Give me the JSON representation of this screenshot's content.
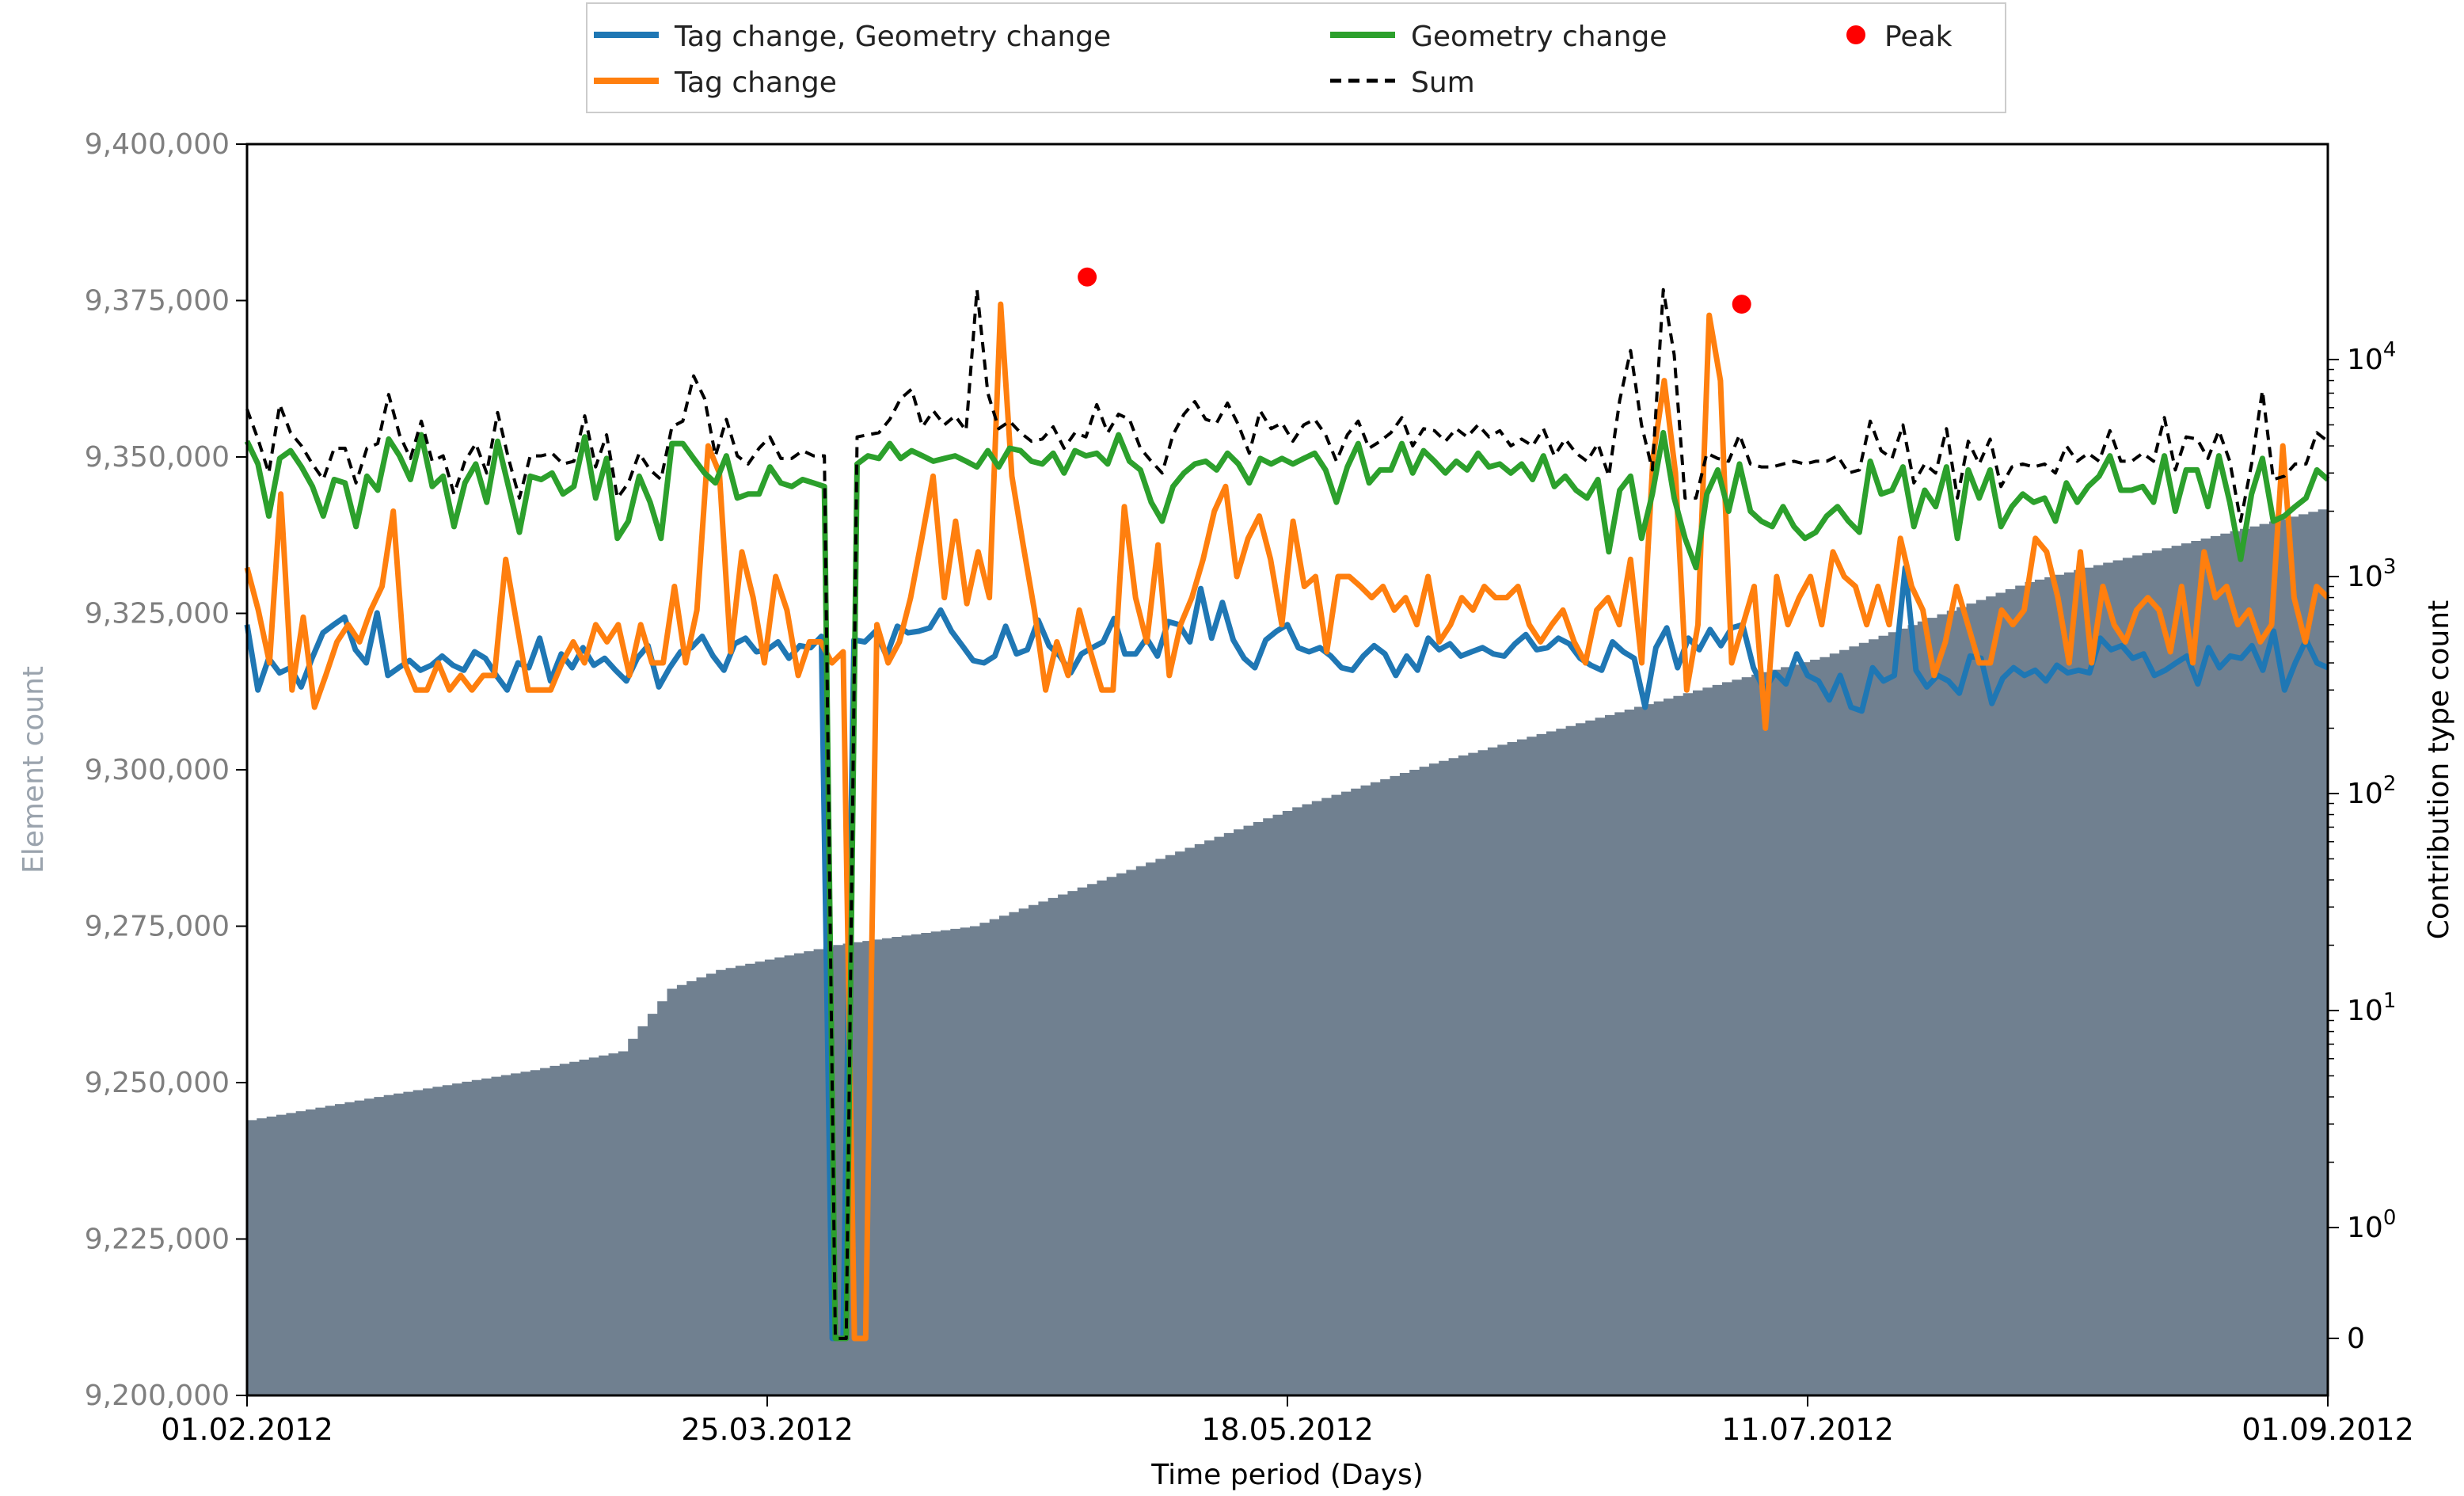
{
  "chart_data": {
    "type": "line",
    "xlabel": "Time period (Days)",
    "ylabel_left": "Element count",
    "ylabel_right": "Contribution type count",
    "x_ticks": [
      "01.02.2012",
      "25.03.2012",
      "18.05.2012",
      "11.07.2012",
      "01.09.2012"
    ],
    "x_range": [
      "2012-02-01",
      "2012-09-01"
    ],
    "y_left_ticks": [
      "9,200,000",
      "9,225,000",
      "9,250,000",
      "9,275,000",
      "9,300,000",
      "9,325,000",
      "9,350,000",
      "9,375,000",
      "9,400,000"
    ],
    "y_left_range": [
      9200000,
      9400000
    ],
    "y_right_scale": "symlog",
    "y_right_ticks": [
      "0",
      "10^0",
      "10^1",
      "10^2",
      "10^3",
      "10^4"
    ],
    "legend_position": "top-center",
    "legend": [
      "Tag change, Geometry change",
      "Tag change",
      "Geometry change",
      "Sum",
      "Peak"
    ],
    "colors": {
      "tag_geometry": "#1f77b4",
      "tag": "#ff7f0e",
      "geometry": "#2ca02c",
      "sum": "#000000",
      "peak": "#ff0000",
      "element_count_fill": "#708090"
    },
    "element_count": {
      "x": [
        "2012-02-01",
        "2012-02-15",
        "2012-03-01",
        "2012-03-10",
        "2012-03-15",
        "2012-03-20",
        "2012-04-01",
        "2012-04-15",
        "2012-05-01",
        "2012-05-18",
        "2012-06-01",
        "2012-06-15",
        "2012-07-01",
        "2012-07-11",
        "2012-08-01",
        "2012-09-01"
      ],
      "y": [
        9244000,
        9248000,
        9252000,
        9255000,
        9265000,
        9268000,
        9272000,
        9275000,
        9284000,
        9294000,
        9301000,
        9307000,
        9314000,
        9318000,
        9330000,
        9342000
      ]
    },
    "series": [
      {
        "name": "Tag change, Geometry change",
        "values": [
          600,
          300,
          420,
          360,
          380,
          310,
          420,
          550,
          600,
          650,
          460,
          400,
          680,
          350,
          380,
          410,
          370,
          390,
          430,
          390,
          370,
          450,
          420,
          350,
          300,
          400,
          380,
          520,
          330,
          440,
          380,
          470,
          390,
          420,
          370,
          330,
          420,
          480,
          310,
          380,
          450,
          470,
          530,
          430,
          370,
          490,
          520,
          450,
          460,
          500,
          420,
          480,
          470,
          530,
          0,
          0,
          510,
          500,
          560,
          430,
          590,
          550,
          560,
          580,
          700,
          560,
          480,
          410,
          400,
          430,
          590,
          440,
          460,
          630,
          480,
          430,
          360,
          440,
          470,
          500,
          640,
          440,
          440,
          520,
          430,
          620,
          600,
          500,
          880,
          520,
          760,
          510,
          420,
          380,
          510,
          560,
          600,
          470,
          450,
          470,
          430,
          380,
          370,
          430,
          480,
          440,
          350,
          430,
          370,
          520,
          460,
          490,
          430,
          450,
          470,
          440,
          430,
          490,
          540,
          460,
          470,
          520,
          490,
          420,
          390,
          370,
          500,
          450,
          420,
          250,
          470,
          580,
          380,
          520,
          460,
          570,
          480,
          580,
          600,
          380,
          300,
          360,
          320,
          440,
          350,
          330,
          270,
          350,
          250,
          240,
          380,
          330,
          350,
          1100,
          370,
          310,
          350,
          330,
          290,
          430,
          420,
          260,
          340,
          380,
          350,
          370,
          330,
          390,
          360,
          370,
          360,
          520,
          460,
          480,
          420,
          440,
          350,
          370,
          400,
          430,
          320,
          470,
          380,
          430,
          420,
          480,
          370,
          560,
          300,
          400,
          510,
          400,
          380
        ]
      },
      {
        "name": "Tag change",
        "values": [
          1100,
          700,
          400,
          2400,
          300,
          650,
          250,
          350,
          500,
          600,
          500,
          700,
          900,
          2000,
          400,
          300,
          300,
          400,
          300,
          350,
          300,
          350,
          350,
          1200,
          600,
          300,
          300,
          300,
          400,
          500,
          400,
          600,
          500,
          600,
          350,
          600,
          400,
          400,
          900,
          400,
          700,
          4000,
          3000,
          450,
          1300,
          800,
          400,
          1000,
          700,
          350,
          500,
          500,
          400,
          450,
          0,
          0,
          600,
          400,
          500,
          800,
          1500,
          2900,
          800,
          1800,
          750,
          1300,
          800,
          18000,
          2900,
          1400,
          700,
          300,
          500,
          350,
          700,
          450,
          300,
          300,
          2100,
          800,
          500,
          1400,
          350,
          600,
          800,
          1200,
          2000,
          2600,
          1000,
          1500,
          1900,
          1200,
          600,
          1800,
          900,
          1000,
          450,
          1000,
          1000,
          900,
          800,
          900,
          700,
          800,
          600,
          1000,
          500,
          600,
          800,
          700,
          900,
          800,
          800,
          900,
          600,
          500,
          600,
          700,
          500,
          400,
          700,
          800,
          600,
          1200,
          400,
          3500,
          8000,
          3000,
          300,
          600,
          16000,
          8000,
          400,
          600,
          900,
          200,
          1000,
          600,
          800,
          1000,
          600,
          1300,
          1000,
          900,
          600,
          900,
          600,
          1500,
          900,
          700,
          350,
          500,
          900,
          600,
          400,
          400,
          700,
          600,
          700,
          1500,
          1300,
          800,
          400,
          1300,
          400,
          900,
          600,
          500,
          700,
          800,
          700,
          450,
          900,
          400,
          1300,
          800,
          900,
          600,
          700,
          500,
          600,
          4000,
          800,
          500,
          900,
          800
        ]
      },
      {
        "name": "Geometry change",
        "values": [
          4200,
          3300,
          1900,
          3500,
          3800,
          3200,
          2600,
          1900,
          2800,
          2700,
          1700,
          2900,
          2500,
          4300,
          3600,
          2800,
          4500,
          2600,
          2900,
          1700,
          2700,
          3300,
          2200,
          4200,
          2600,
          1600,
          2900,
          2800,
          3000,
          2400,
          2600,
          4400,
          2300,
          3500,
          1500,
          1800,
          2900,
          2200,
          1500,
          4100,
          4100,
          3500,
          3000,
          2700,
          3600,
          2300,
          2400,
          2400,
          3200,
          2700,
          2600,
          2800,
          2700,
          2600,
          0,
          0,
          3300,
          3600,
          3500,
          4100,
          3500,
          3800,
          3600,
          3400,
          3500,
          3600,
          3400,
          3200,
          3800,
          3200,
          3900,
          3800,
          3400,
          3300,
          3700,
          3000,
          3800,
          3600,
          3700,
          3300,
          4500,
          3400,
          3100,
          2200,
          1800,
          2600,
          3000,
          3300,
          3400,
          3100,
          3700,
          3300,
          2700,
          3500,
          3300,
          3500,
          3300,
          3500,
          3700,
          3100,
          2200,
          3200,
          4100,
          2700,
          3100,
          3100,
          4100,
          3000,
          3800,
          3400,
          3000,
          3400,
          3100,
          3700,
          3200,
          3300,
          3000,
          3300,
          2800,
          3600,
          2600,
          2900,
          2500,
          2300,
          2800,
          1300,
          2500,
          2900,
          1500,
          2400,
          4600,
          2300,
          1500,
          1100,
          2400,
          3100,
          2000,
          3300,
          2000,
          1800,
          1700,
          2100,
          1700,
          1500,
          1600,
          1900,
          2100,
          1800,
          1600,
          3400,
          2400,
          2500,
          3200,
          1700,
          2500,
          2100,
          3200,
          1500,
          3100,
          2300,
          3100,
          1700,
          2100,
          2400,
          2200,
          2300,
          1800,
          2700,
          2200,
          2600,
          2900,
          3600,
          2500,
          2500,
          2600,
          2200,
          3600,
          2000,
          3100,
          3100,
          2100,
          3600,
          2200,
          1200,
          2400,
          3500,
          1800,
          1900,
          2100,
          2300,
          3100,
          2800
        ]
      },
      {
        "name": "Sum",
        "values": [
          5900,
          4300,
          3000,
          6200,
          4600,
          4000,
          3300,
          2800,
          3900,
          3900,
          2700,
          3900,
          4100,
          6900,
          4500,
          3500,
          5200,
          3400,
          3600,
          2400,
          3400,
          4100,
          3000,
          5700,
          3500,
          2300,
          3600,
          3600,
          3700,
          3300,
          3400,
          5500,
          3200,
          4500,
          2300,
          2700,
          3700,
          3100,
          2800,
          4900,
          5200,
          8400,
          6600,
          3600,
          5300,
          3600,
          3300,
          3900,
          4400,
          3500,
          3500,
          3800,
          3600,
          3600,
          0,
          0,
          4400,
          4500,
          4600,
          5300,
          6600,
          7300,
          4900,
          5800,
          5000,
          5500,
          4700,
          21000,
          7000,
          4800,
          5200,
          4600,
          4200,
          4300,
          4900,
          3900,
          4600,
          4400,
          6200,
          4600,
          5600,
          5300,
          3900,
          3400,
          3000,
          4500,
          5600,
          6400,
          5300,
          5100,
          6300,
          5000,
          3700,
          5800,
          4800,
          5100,
          4200,
          5000,
          5300,
          4500,
          3400,
          4500,
          5200,
          3900,
          4200,
          4600,
          5400,
          4000,
          4800,
          4700,
          4200,
          4800,
          4400,
          5000,
          4400,
          4700,
          4000,
          4300,
          4000,
          4800,
          3600,
          4300,
          3700,
          3400,
          4100,
          2900,
          6500,
          11000,
          5000,
          3100,
          21000,
          10500,
          2300,
          2300,
          3700,
          3500,
          3400,
          4500,
          3300,
          3200,
          3200,
          3300,
          3400,
          3300,
          3400,
          3400,
          3600,
          3000,
          3100,
          5200,
          3800,
          3500,
          5000,
          2700,
          3300,
          3000,
          4800,
          2300,
          4200,
          3300,
          4300,
          2600,
          3200,
          3300,
          3200,
          3300,
          3000,
          4000,
          3400,
          3700,
          3400,
          4700,
          3400,
          3400,
          3700,
          3400,
          5400,
          3100,
          4400,
          4300,
          3500,
          4700,
          3400,
          1800,
          3300,
          7200,
          2800,
          2900,
          3300,
          3300,
          4600,
          4200
        ]
      }
    ],
    "peaks": [
      {
        "date": "2012-04-27",
        "value": 24000
      },
      {
        "date": "2012-07-03",
        "value": 18000
      }
    ]
  }
}
